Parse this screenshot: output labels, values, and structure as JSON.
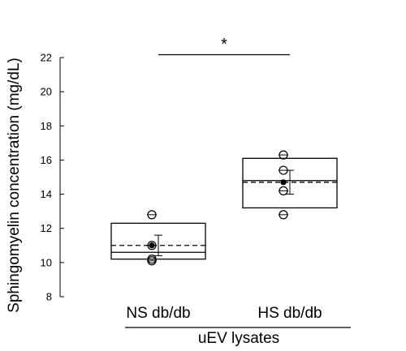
{
  "chart_data": {
    "type": "box",
    "title": "",
    "ylabel": "Sphingomyelin concentration (mg/dL)",
    "xlabel": "uEV lysates",
    "ylim": [
      8,
      22
    ],
    "yticks": [
      8,
      10,
      12,
      14,
      16,
      18,
      20,
      22
    ],
    "categories": [
      "NS db/db",
      "HS db/db"
    ],
    "boxes": [
      {
        "category": "NS db/db",
        "q1": 10.2,
        "median": 10.6,
        "q3": 12.3,
        "mean": 11.0,
        "mean_error": 0.6,
        "points": [
          12.8,
          11.0,
          10.2,
          10.1
        ]
      },
      {
        "category": "HS db/db",
        "q1": 13.2,
        "median": 14.8,
        "q3": 16.1,
        "mean": 14.7,
        "mean_error": 0.7,
        "points": [
          16.3,
          15.4,
          14.2,
          12.8
        ]
      }
    ],
    "annotation": "*",
    "grid": false,
    "legend": "none"
  }
}
